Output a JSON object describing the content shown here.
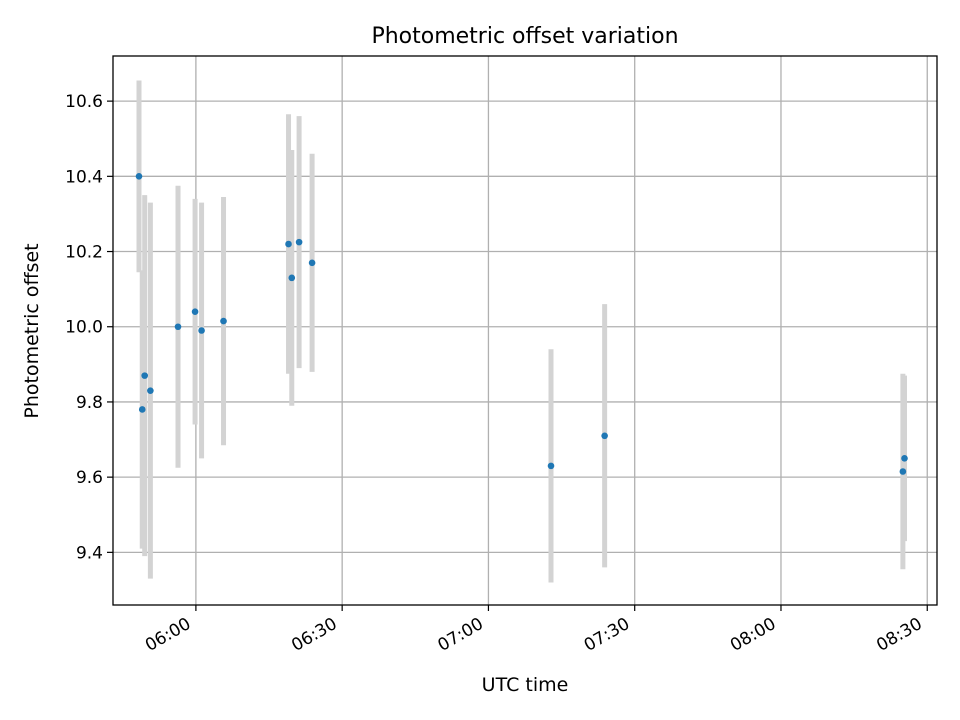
{
  "chart_data": {
    "type": "scatter",
    "title": "Photometric offset variation",
    "xlabel": "UTC time",
    "ylabel": "Photometric offset",
    "x_ticks": [
      "06:00",
      "06:30",
      "07:00",
      "07:30",
      "08:00",
      "08:30"
    ],
    "y_ticks": [
      9.4,
      9.6,
      9.8,
      10.0,
      10.2,
      10.4,
      10.6
    ],
    "xlim": [
      "05:43",
      "08:32"
    ],
    "ylim": [
      9.26,
      10.72
    ],
    "grid": true,
    "marker_color": "#1f77b4",
    "errorbar_color": "#d3d3d3",
    "points": [
      {
        "time": "05:48:20",
        "y": 10.4,
        "err": 0.255
      },
      {
        "time": "05:49:00",
        "y": 9.78,
        "err": 0.37
      },
      {
        "time": "05:49:30",
        "y": 9.87,
        "err": 0.48
      },
      {
        "time": "05:50:40",
        "y": 9.83,
        "err": 0.5
      },
      {
        "time": "05:56:20",
        "y": 10.0,
        "err": 0.375
      },
      {
        "time": "05:59:50",
        "y": 10.04,
        "err": 0.3
      },
      {
        "time": "06:01:10",
        "y": 9.99,
        "err": 0.34
      },
      {
        "time": "06:05:40",
        "y": 10.015,
        "err": 0.33
      },
      {
        "time": "06:19:00",
        "y": 10.22,
        "err": 0.345
      },
      {
        "time": "06:19:40",
        "y": 10.13,
        "err": 0.34
      },
      {
        "time": "06:21:10",
        "y": 10.225,
        "err": 0.335
      },
      {
        "time": "06:23:50",
        "y": 10.17,
        "err": 0.29
      },
      {
        "time": "07:12:50",
        "y": 9.63,
        "err": 0.31
      },
      {
        "time": "07:23:50",
        "y": 9.71,
        "err": 0.35
      },
      {
        "time": "08:25:00",
        "y": 9.615,
        "err": 0.26
      },
      {
        "time": "08:25:20",
        "y": 9.65,
        "err": 0.22
      }
    ]
  }
}
